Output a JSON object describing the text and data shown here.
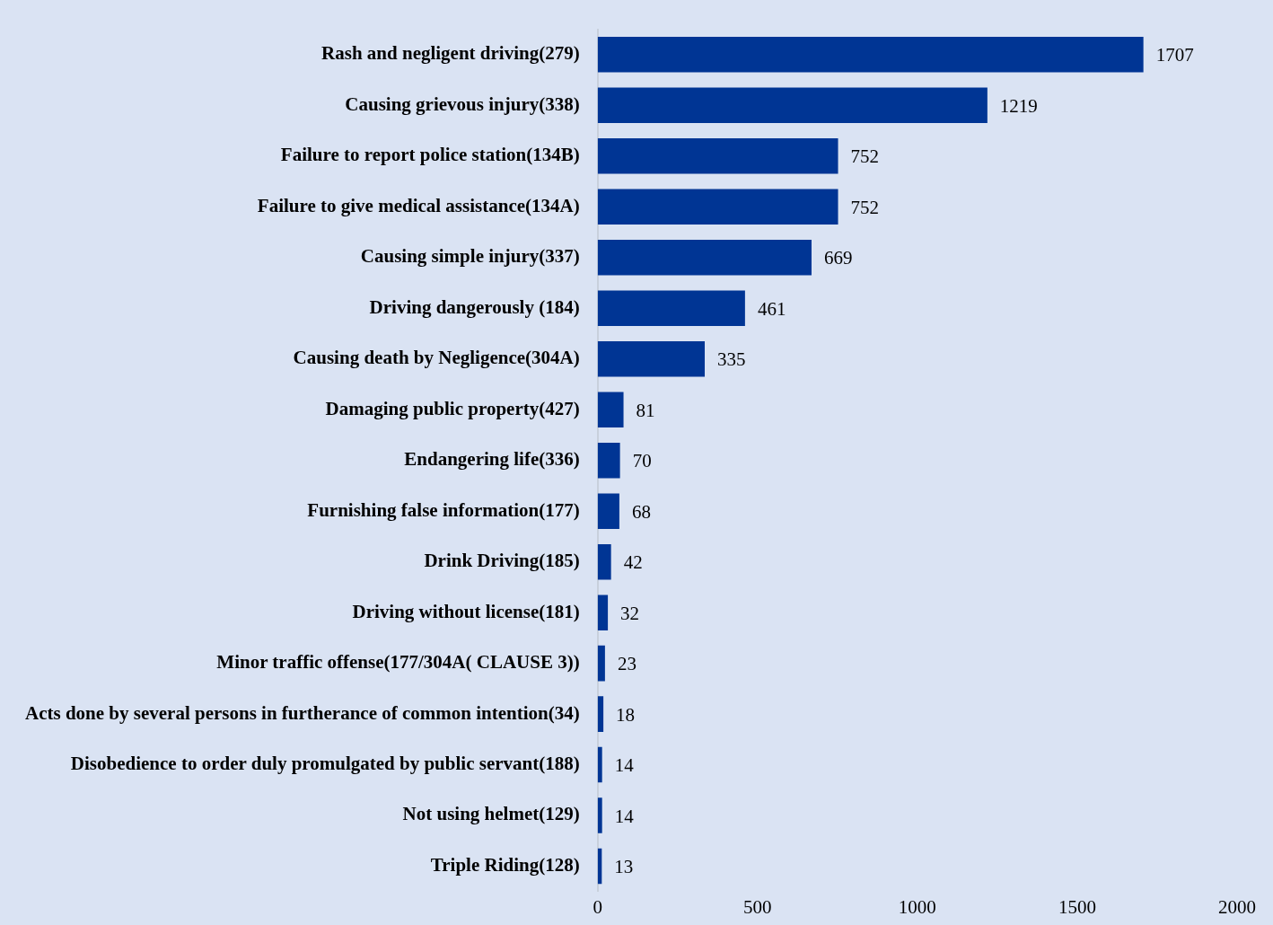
{
  "chart_data": {
    "type": "bar",
    "orientation": "horizontal",
    "categories": [
      "Rash and negligent driving(279)",
      "Causing grievous injury(338)",
      "Failure to report police station(134B)",
      "Failure to give medical assistance(134A)",
      "Causing simple injury(337)",
      "Driving dangerously (184)",
      "Causing death by Negligence(304A)",
      "Damaging public property(427)",
      "Endangering life(336)",
      "Furnishing false information(177)",
      "Drink Driving(185)",
      "Driving without license(181)",
      "Minor traffic offense(177/304A( CLAUSE 3))",
      "Acts done by several persons in furtherance of common intention(34)",
      "Disobedience to order duly promulgated by public servant(188)",
      "Not using helmet(129)",
      "Triple Riding(128)"
    ],
    "values": [
      1707,
      1219,
      752,
      752,
      669,
      461,
      335,
      81,
      70,
      68,
      42,
      32,
      23,
      18,
      14,
      14,
      13
    ],
    "color": "#003594",
    "xlim": [
      0,
      2000
    ],
    "xticks": [
      0,
      500,
      1000,
      1500,
      2000
    ],
    "data_labels": true
  }
}
